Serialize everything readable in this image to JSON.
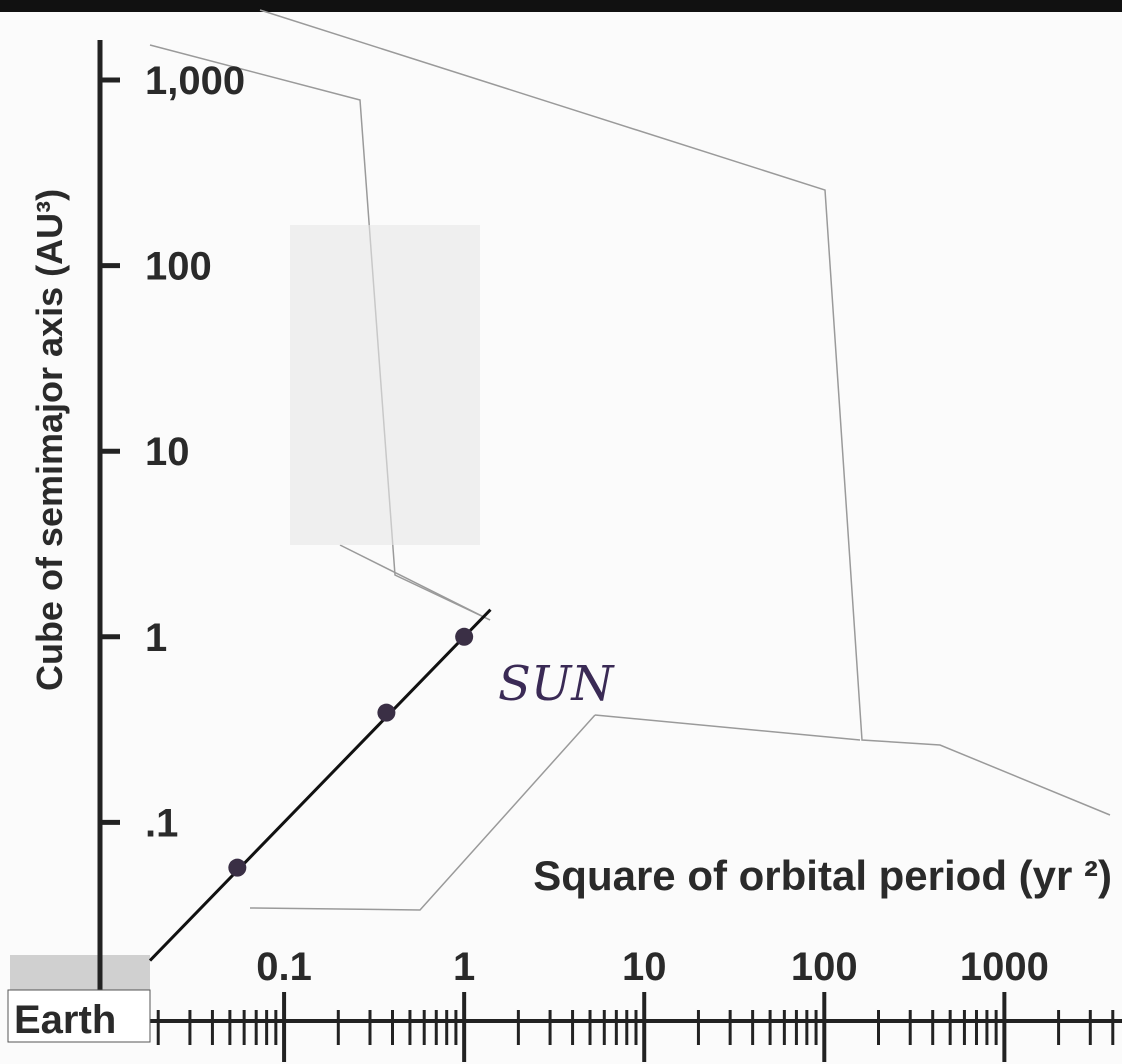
{
  "chart_data": {
    "type": "scatter",
    "y_label": "Cube of semimajor axis (AU³)",
    "x_label": "Square of orbital period (yr ²)",
    "annotations": [
      "Earth",
      "SUN"
    ],
    "xscale": "log",
    "yscale": "log",
    "xlim": [
      0.0095,
      4500
    ],
    "ylim": [
      0.0085,
      2700
    ],
    "xticks": [
      0.1,
      1,
      10,
      100,
      1000
    ],
    "xminor_ticks": [
      0.02,
      0.03,
      0.04,
      0.05,
      0.06,
      0.07,
      0.08,
      0.09,
      0.2,
      0.3,
      0.4,
      0.5,
      0.6,
      0.7,
      0.8,
      0.9,
      2,
      3,
      4,
      5,
      6,
      7,
      8,
      9,
      20,
      30,
      40,
      50,
      60,
      70,
      80,
      90,
      200,
      300,
      400,
      500,
      600,
      700,
      800,
      900,
      2000,
      3000,
      4000
    ],
    "yticks": [
      {
        "value": 1000,
        "label": "1,000"
      },
      100,
      10,
      1,
      {
        "value": 0.1,
        "label": ".1"
      }
    ],
    "points": {
      "color": "#3a2f45",
      "x": [
        0.055,
        0.37,
        1
      ],
      "values": [
        0.057,
        0.39,
        1
      ]
    },
    "line": {
      "color": "#111111",
      "x": [
        0.018,
        1.4
      ],
      "values": [
        0.018,
        1.4
      ]
    }
  }
}
